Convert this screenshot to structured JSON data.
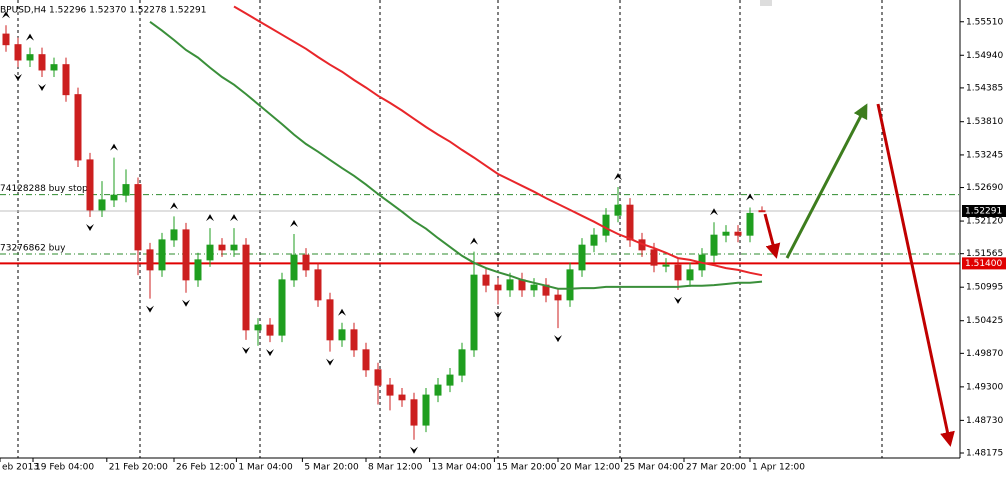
{
  "chart_data": {
    "type": "candlestick",
    "quote": "BPUSD,H4  1.52296 1.52370 1.52278 1.52291",
    "xlim": [
      -0.5,
      79.5
    ],
    "ylim": [
      1.4809,
      1.5588
    ],
    "bull_color": "#1f9e1f",
    "bear_color": "#cc1f1f",
    "open": [
      1.553,
      1.5512,
      1.5486,
      1.5495,
      1.5469,
      1.5478,
      1.5427,
      1.5316,
      1.5231,
      1.5248,
      1.5256,
      1.5274,
      1.5163,
      1.5129,
      1.518,
      1.5197,
      1.5112,
      1.5146,
      1.5171,
      1.5163,
      1.5171,
      1.5027,
      1.5035,
      1.5018,
      1.5112,
      1.5154,
      1.5129,
      1.5078,
      1.501,
      1.5027,
      1.4993,
      1.4959,
      1.4933,
      1.4916,
      1.4908,
      1.4865,
      1.4916,
      1.4933,
      1.495,
      1.4993,
      1.512,
      1.5103,
      1.5095,
      1.5112,
      1.5095,
      1.5103,
      1.5086,
      1.5078,
      1.5129,
      1.5171,
      1.5188,
      1.5222,
      1.5239,
      1.518,
      1.5163,
      1.5137,
      1.5137,
      1.5112,
      1.5129,
      1.5154,
      1.5188,
      1.5193,
      1.5188,
      1.52296
    ],
    "high": [
      1.5545,
      1.5524,
      1.5507,
      1.5507,
      1.549,
      1.549,
      1.5439,
      1.5328,
      1.528,
      1.532,
      1.53,
      1.5286,
      1.5175,
      1.5192,
      1.522,
      1.5209,
      1.5158,
      1.52,
      1.5183,
      1.52,
      1.5183,
      1.5047,
      1.5047,
      1.5124,
      1.519,
      1.5166,
      1.5141,
      1.509,
      1.5039,
      1.5039,
      1.5005,
      1.4971,
      1.4945,
      1.4928,
      1.492,
      1.4928,
      1.4945,
      1.4962,
      1.5005,
      1.516,
      1.5132,
      1.5115,
      1.5124,
      1.5124,
      1.5115,
      1.5115,
      1.5098,
      1.5141,
      1.5183,
      1.52,
      1.5234,
      1.527,
      1.5251,
      1.5192,
      1.5175,
      1.5149,
      1.5149,
      1.5141,
      1.5166,
      1.521,
      1.5205,
      1.5205,
      1.5235,
      1.5237
    ],
    "low": [
      1.55,
      1.5474,
      1.5474,
      1.5457,
      1.5457,
      1.5415,
      1.5304,
      1.5219,
      1.5219,
      1.5236,
      1.5244,
      1.512,
      1.508,
      1.5117,
      1.5168,
      1.509,
      1.51,
      1.5134,
      1.5151,
      1.5151,
      1.501,
      1.5,
      1.5006,
      1.5006,
      1.51,
      1.5117,
      1.5066,
      1.499,
      1.4998,
      1.4981,
      1.4947,
      1.49,
      1.489,
      1.4896,
      1.484,
      1.4853,
      1.4904,
      1.4921,
      1.4938,
      1.4981,
      1.5091,
      1.507,
      1.5083,
      1.5083,
      1.5083,
      1.5074,
      1.503,
      1.5066,
      1.5117,
      1.5159,
      1.5176,
      1.521,
      1.5168,
      1.5151,
      1.5125,
      1.5125,
      1.5095,
      1.51,
      1.5117,
      1.5142,
      1.5176,
      1.5176,
      1.5176,
      1.52278
    ],
    "close": [
      1.5512,
      1.5486,
      1.5495,
      1.5469,
      1.5478,
      1.5427,
      1.5316,
      1.5231,
      1.5248,
      1.5256,
      1.5274,
      1.5163,
      1.5129,
      1.518,
      1.5197,
      1.5112,
      1.5146,
      1.5171,
      1.5163,
      1.5171,
      1.5027,
      1.5035,
      1.5018,
      1.5112,
      1.5154,
      1.5129,
      1.5078,
      1.501,
      1.5027,
      1.4993,
      1.4959,
      1.4933,
      1.4916,
      1.4908,
      1.4865,
      1.4916,
      1.4933,
      1.495,
      1.4993,
      1.512,
      1.5103,
      1.5095,
      1.5112,
      1.5095,
      1.5103,
      1.5086,
      1.5078,
      1.5129,
      1.5171,
      1.5188,
      1.5222,
      1.5239,
      1.518,
      1.5163,
      1.5137,
      1.5137,
      1.5112,
      1.5129,
      1.5154,
      1.5188,
      1.5193,
      1.5188,
      1.5225,
      1.52291
    ],
    "moving_averages": [
      {
        "color": "#e8262a",
        "values": [
          null,
          null,
          null,
          null,
          null,
          null,
          null,
          null,
          null,
          null,
          null,
          null,
          null,
          null,
          null,
          null,
          null,
          null,
          null,
          1.5577,
          1.5565,
          1.5553,
          1.5541,
          1.5529,
          1.5517,
          1.5505,
          1.5491,
          1.5478,
          1.5466,
          1.5452,
          1.5439,
          1.5425,
          1.5413,
          1.54,
          1.5386,
          1.5372,
          1.5359,
          1.5347,
          1.5333,
          1.532,
          1.5306,
          1.5292,
          1.5282,
          1.5272,
          1.5262,
          1.5251,
          1.5241,
          1.5231,
          1.5221,
          1.5211,
          1.52,
          1.519,
          1.5182,
          1.5173,
          1.5166,
          1.5158,
          1.5149,
          1.5146,
          1.5141,
          1.5137,
          1.5132,
          1.5129,
          1.5124,
          1.512
        ]
      },
      {
        "color": "#3a8f3a",
        "values": [
          null,
          null,
          null,
          null,
          null,
          null,
          null,
          null,
          null,
          null,
          null,
          null,
          1.5551,
          1.5536,
          1.552,
          1.5503,
          1.549,
          1.5473,
          1.5457,
          1.5444,
          1.5428,
          1.5411,
          1.5394,
          1.5377,
          1.5359,
          1.5343,
          1.533,
          1.5316,
          1.5302,
          1.5289,
          1.5274,
          1.5258,
          1.5243,
          1.5228,
          1.5212,
          1.5199,
          1.5183,
          1.5168,
          1.5153,
          1.5141,
          1.5132,
          1.5125,
          1.5119,
          1.5112,
          1.5107,
          1.5102,
          1.5097,
          1.5097,
          1.5098,
          1.5098,
          1.51,
          1.51,
          1.51,
          1.51,
          1.51,
          1.51,
          1.51,
          1.5102,
          1.5102,
          1.5103,
          1.5105,
          1.5107,
          1.5107,
          1.5109
        ]
      }
    ],
    "fractals": {
      "up": [
        0,
        2,
        9,
        14,
        17,
        19,
        24,
        28,
        39,
        51,
        59,
        62
      ],
      "down": [
        1,
        3,
        7,
        12,
        15,
        20,
        22,
        27,
        34,
        41,
        46,
        56
      ]
    },
    "order_lines": [
      {
        "value": 1.5257,
        "label": "74128288 buy stop",
        "color": "#2e8b2e"
      },
      {
        "value": 1.5156,
        "label": "73276862 buy",
        "color": "#2e8b2e"
      }
    ],
    "price_lines": [
      {
        "value": 1.52291,
        "label": "1.52291",
        "color": "#c0c0c0",
        "box": "#000000"
      },
      {
        "value": 1.514,
        "label": "1.51400",
        "color": "#e00000",
        "box": "#e00000"
      }
    ],
    "yticks": [
      {
        "value": 1.5551,
        "label": "1.55510"
      },
      {
        "value": 1.5494,
        "label": "1.54940"
      },
      {
        "value": 1.54385,
        "label": "1.54385"
      },
      {
        "value": 1.5381,
        "label": "1.53810"
      },
      {
        "value": 1.53245,
        "label": "1.53245"
      },
      {
        "value": 1.5269,
        "label": "1.52690"
      },
      {
        "value": 1.5212,
        "label": "1.52120"
      },
      {
        "value": 1.51565,
        "label": "1.51565"
      },
      {
        "value": 1.50995,
        "label": "1.50995"
      },
      {
        "value": 1.50425,
        "label": "1.50425"
      },
      {
        "value": 1.4987,
        "label": "1.49870"
      },
      {
        "value": 1.493,
        "label": "1.49300"
      },
      {
        "value": 1.4873,
        "label": "1.48730"
      },
      {
        "value": 1.48175,
        "label": "1.48175"
      }
    ],
    "xticks": [
      {
        "value": -0.5,
        "label": "eb 2013"
      },
      {
        "value": 2.25,
        "label": "19 Feb 04:00"
      },
      {
        "value": 8.4,
        "label": "21 Feb 20:00"
      },
      {
        "value": 14,
        "label": "26 Feb 12:00"
      },
      {
        "value": 19.2,
        "label": "1 Mar 04:00"
      },
      {
        "value": 24.7,
        "label": "5 Mar 20:00"
      },
      {
        "value": 30,
        "label": "8 Mar 12:00"
      },
      {
        "value": 35.3,
        "label": "13 Mar 04:00"
      },
      {
        "value": 40.7,
        "label": "15 Mar 20:00"
      },
      {
        "value": 46,
        "label": "20 Mar 12:00"
      },
      {
        "value": 51.3,
        "label": "25 Mar 04:00"
      },
      {
        "value": 56.5,
        "label": "27 Mar 20:00"
      },
      {
        "value": 62,
        "label": "1 Apr 12:00"
      }
    ]
  }
}
